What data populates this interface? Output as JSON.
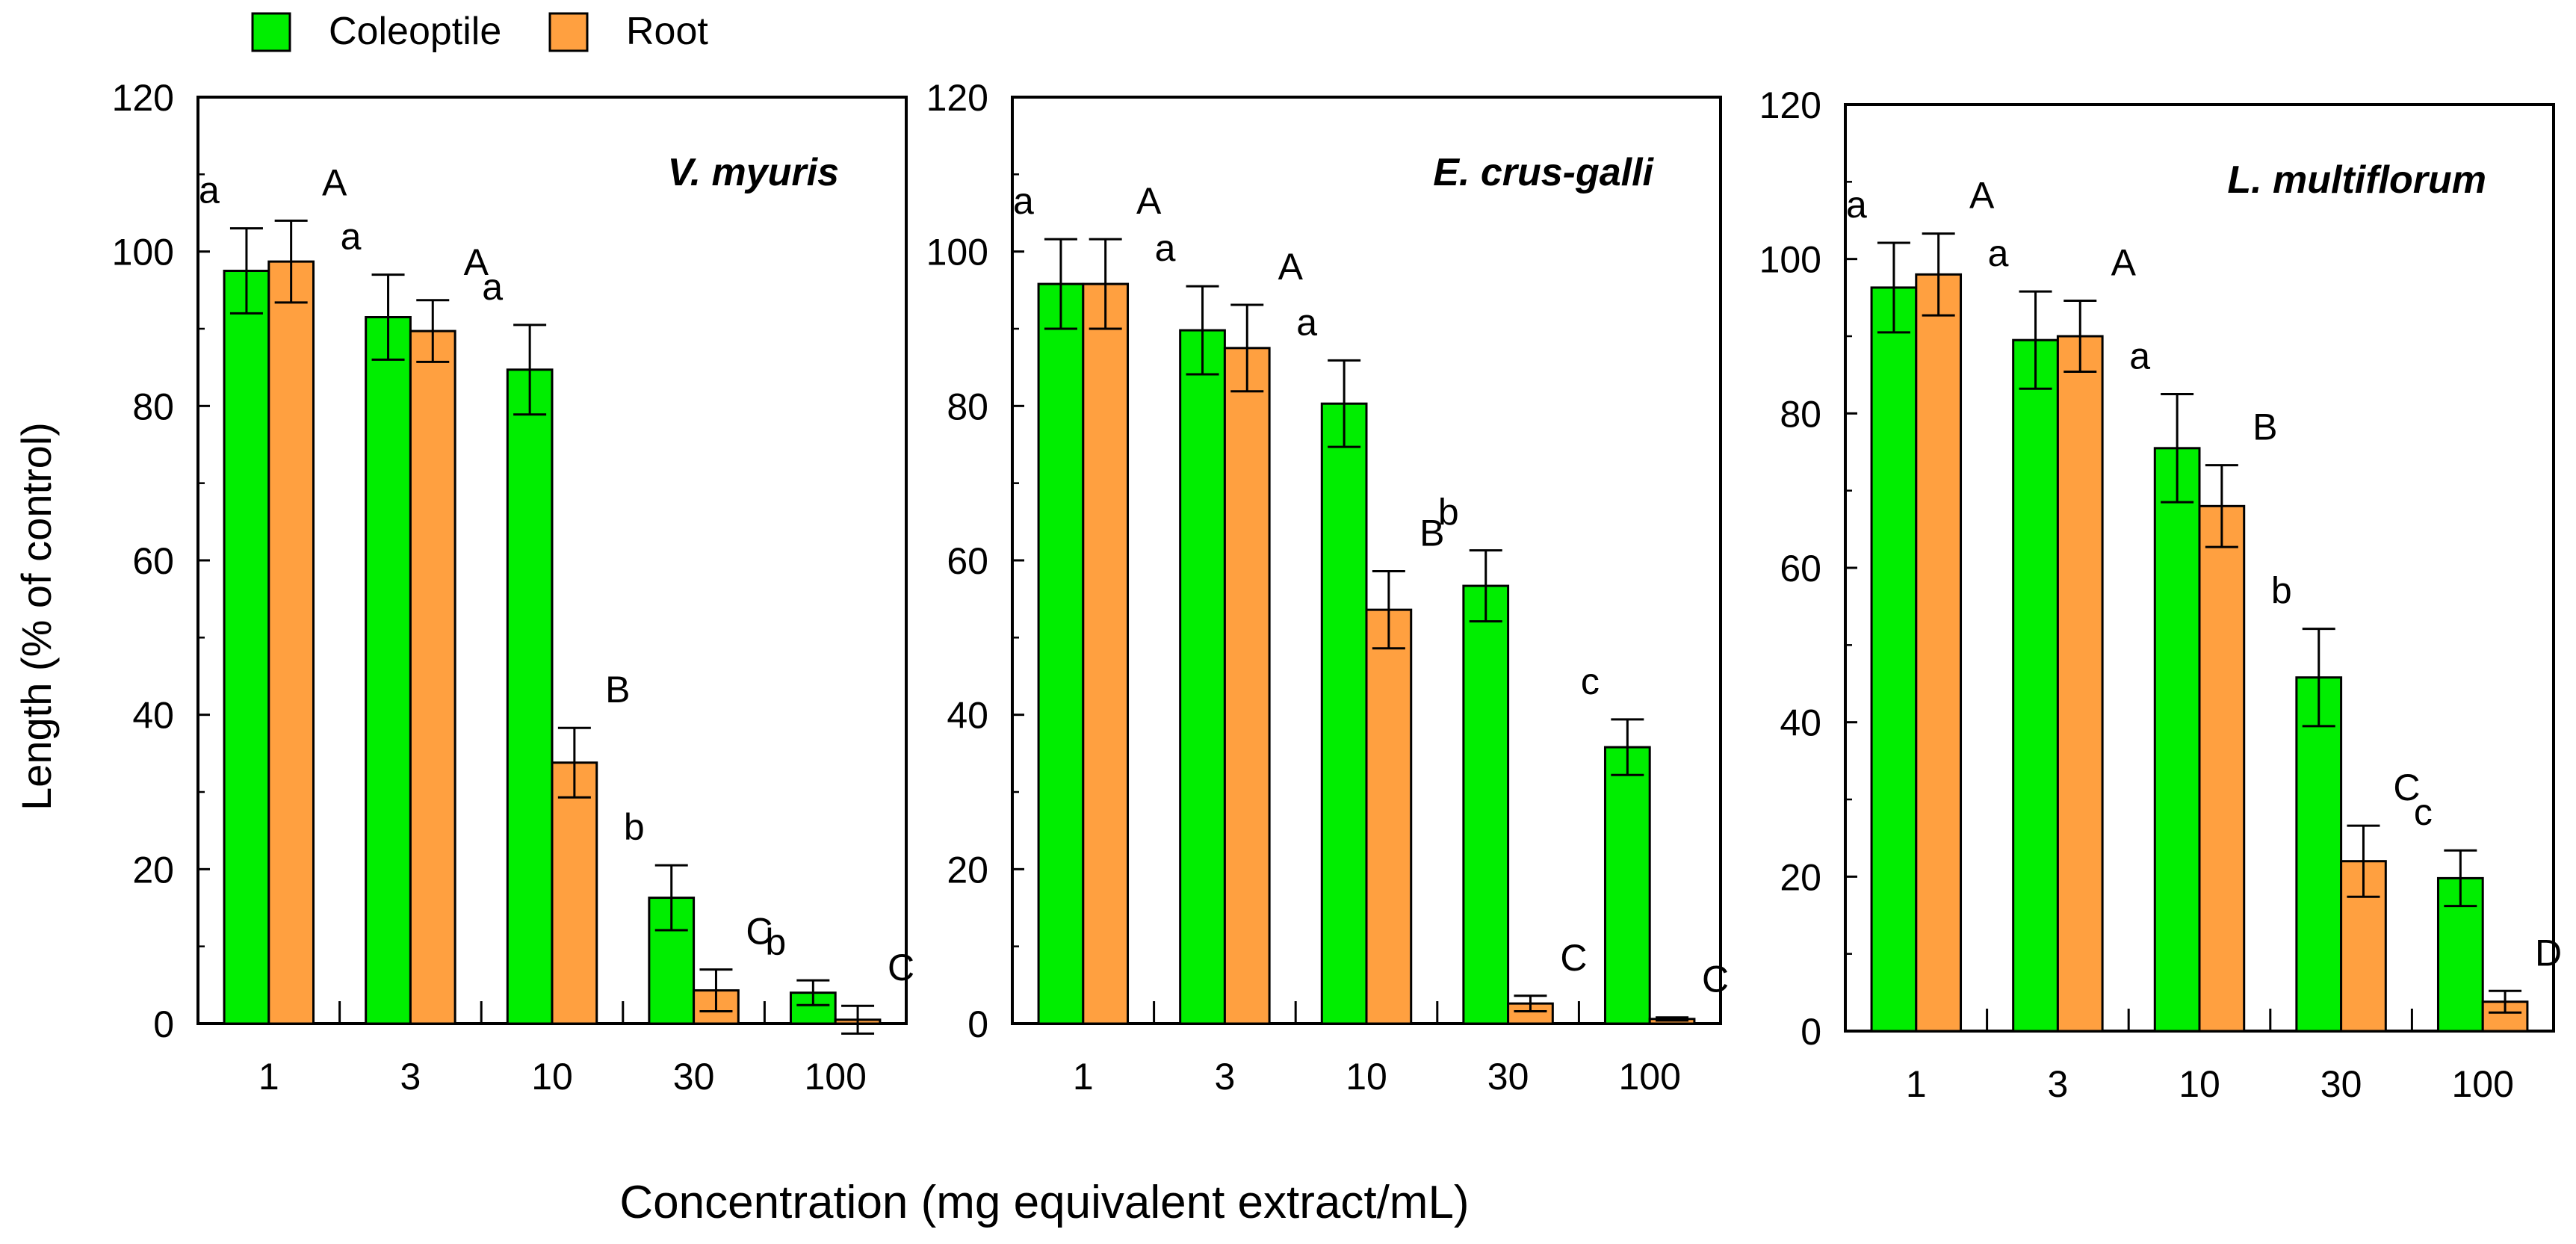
{
  "legend": [
    {
      "name": "Coleoptile",
      "color": "#00ee00"
    },
    {
      "name": "Root",
      "color": "#ffa040"
    }
  ],
  "y_axis_label": "Length  (% of control)",
  "x_axis_label": "Concentration (mg equivalent extract/mL)",
  "chart_data": [
    {
      "type": "bar",
      "title": "V. myuris",
      "categories": [
        "1",
        "3",
        "10",
        "30",
        "100"
      ],
      "ylim": [
        0,
        120
      ],
      "yticks": [
        "0",
        "20",
        "40",
        "60",
        "80",
        "100",
        "120"
      ],
      "series": [
        {
          "name": "Coleoptile",
          "values": [
            97.5,
            91.5,
            84.7,
            16.3,
            4.0
          ],
          "errors": [
            5.5,
            5.5,
            5.8,
            4.2,
            1.6
          ],
          "letters": [
            "a",
            "a",
            "a",
            "b",
            "b"
          ]
        },
        {
          "name": "Root",
          "values": [
            98.7,
            89.7,
            33.8,
            4.3,
            0.5
          ],
          "errors": [
            5.3,
            4.0,
            4.5,
            2.7,
            1.8
          ],
          "letters": [
            "A",
            "A",
            "B",
            "C",
            "C"
          ]
        }
      ]
    },
    {
      "type": "bar",
      "title": "E. crus-galli",
      "categories": [
        "1",
        "3",
        "10",
        "30",
        "100"
      ],
      "ylim": [
        0,
        120
      ],
      "yticks": [
        "0",
        "20",
        "40",
        "60",
        "80",
        "100",
        "120"
      ],
      "series": [
        {
          "name": "Coleoptile",
          "values": [
            95.8,
            89.8,
            80.3,
            56.7,
            35.8
          ],
          "errors": [
            5.8,
            5.7,
            5.6,
            4.6,
            3.6
          ],
          "letters": [
            "a",
            "a",
            "a",
            "b",
            "c"
          ]
        },
        {
          "name": "Root",
          "values": [
            95.8,
            87.5,
            53.6,
            2.6,
            0.6
          ],
          "errors": [
            5.8,
            5.6,
            5.0,
            1.0,
            0.2
          ],
          "letters": [
            "A",
            "A",
            "B",
            "C",
            "C"
          ]
        }
      ]
    },
    {
      "type": "bar",
      "title": "L. multiflorum",
      "categories": [
        "1",
        "3",
        "10",
        "30",
        "100"
      ],
      "ylim": [
        0,
        120
      ],
      "yticks": [
        "0",
        "20",
        "40",
        "60",
        "80",
        "100",
        "120"
      ],
      "series": [
        {
          "name": "Coleoptile",
          "values": [
            96.3,
            89.5,
            75.5,
            45.8,
            19.8
          ],
          "errors": [
            5.8,
            6.3,
            7.0,
            6.3,
            3.6
          ],
          "letters": [
            "a",
            "a",
            "a",
            "b",
            "c"
          ]
        },
        {
          "name": "Root",
          "values": [
            98.0,
            90.0,
            68.0,
            22.0,
            3.8
          ],
          "errors": [
            5.3,
            4.6,
            5.3,
            4.6,
            1.4
          ],
          "letters": [
            "A",
            "A",
            "B",
            "C",
            "D"
          ]
        }
      ]
    }
  ]
}
